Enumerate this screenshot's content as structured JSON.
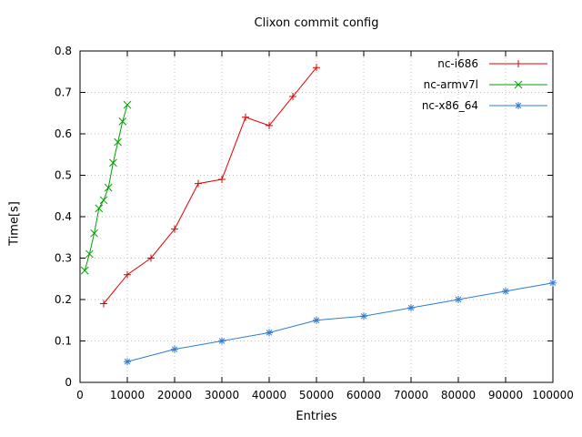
{
  "page": {
    "background": "#ffffff"
  },
  "chart_data": {
    "type": "line",
    "title": "Clixon commit config",
    "xlabel": "Entries",
    "ylabel": "Time[s]",
    "xlim": [
      0,
      100000
    ],
    "ylim": [
      0,
      0.8
    ],
    "xticks": [
      0,
      10000,
      20000,
      30000,
      40000,
      50000,
      60000,
      70000,
      80000,
      90000,
      100000
    ],
    "yticks": [
      0,
      0.1,
      0.2,
      0.3,
      0.4,
      0.5,
      0.6,
      0.7,
      0.8
    ],
    "grid": true,
    "grid_color": "#bdbdbd",
    "border_color": "#000000",
    "legend_position": "top-right",
    "series": [
      {
        "name": "nc-i686",
        "color": "#e00000",
        "marker": "plus",
        "x": [
          5000,
          10000,
          15000,
          20000,
          25000,
          30000,
          35000,
          40000,
          45000,
          50000
        ],
        "y": [
          0.19,
          0.26,
          0.3,
          0.37,
          0.48,
          0.49,
          0.64,
          0.62,
          0.69,
          0.76
        ]
      },
      {
        "name": "nc-armv7l",
        "color": "#00a000",
        "marker": "cross",
        "x": [
          1000,
          2000,
          3000,
          4000,
          5000,
          6000,
          7000,
          8000,
          9000,
          10000
        ],
        "y": [
          0.27,
          0.31,
          0.36,
          0.42,
          0.44,
          0.47,
          0.53,
          0.58,
          0.63,
          0.67
        ]
      },
      {
        "name": "nc-x86_64",
        "color": "#2e7dd1",
        "marker": "star",
        "x": [
          10000,
          20000,
          30000,
          40000,
          50000,
          60000,
          70000,
          80000,
          90000,
          100000
        ],
        "y": [
          0.05,
          0.08,
          0.1,
          0.12,
          0.15,
          0.16,
          0.18,
          0.2,
          0.22,
          0.24
        ]
      }
    ]
  }
}
